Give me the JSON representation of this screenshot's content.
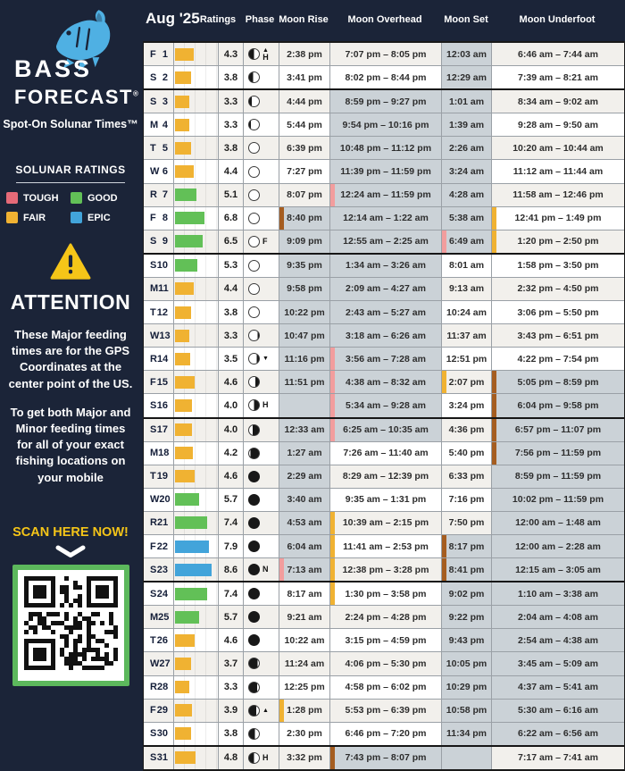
{
  "sidebar": {
    "brand_line1": "BASS",
    "brand_line2": "FORECAST",
    "reg_mark": "®",
    "tagline": "Spot-On Solunar Times™",
    "ratings_legend": {
      "title": "SOLUNAR RATINGS",
      "items": [
        {
          "label": "TOUGH",
          "color_key": "tough"
        },
        {
          "label": "GOOD",
          "color_key": "good"
        },
        {
          "label": "FAIR",
          "color_key": "fair"
        },
        {
          "label": "EPIC",
          "color_key": "epic"
        }
      ]
    },
    "attention": {
      "title": "ATTENTION",
      "para1": "These Major feeding times are for the GPS Coordinates at the center point of the US.",
      "para2": "To get both Major and Minor feeding times for all of your exact fishing locations on your mobile",
      "cta": "SCAN HERE NOW!"
    }
  },
  "table": {
    "month_label": "Aug '25",
    "columns": [
      "Ratings",
      "Phase",
      "Moon Rise",
      "Moon Overhead",
      "Moon Set",
      "Moon Underfoot"
    ],
    "colors": {
      "navy": "#1b2438",
      "tough": "#e66a78",
      "good": "#62c057",
      "fair": "#f0b232",
      "epic": "#42a4da",
      "night": "#cbd2d7",
      "marker_pink": "#f29d9d",
      "marker_brown": "#a55d20",
      "marker_yellow": "#f0b232",
      "qr_border": "#5cb85c",
      "accent_yellow": "#f5c518"
    },
    "week_break_after": [
      2,
      9,
      16,
      23,
      30
    ],
    "rows": [
      {
        "d": "F",
        "n": 1,
        "r": 4.3,
        "ph": [
          "left",
          50,
          "H",
          "up"
        ],
        "cells": [
          [
            "2:38 pm",
            0,
            ""
          ],
          [
            "7:07 pm – 8:05 pm",
            0,
            ""
          ],
          [
            "12:03 am",
            1,
            ""
          ],
          [
            "6:46 am – 7:44 am",
            0,
            ""
          ]
        ]
      },
      {
        "d": "S",
        "n": 2,
        "r": 3.8,
        "ph": [
          "left",
          40,
          "",
          ""
        ],
        "cells": [
          [
            "3:41 pm",
            0,
            ""
          ],
          [
            "8:02 pm – 8:44 pm",
            0,
            ""
          ],
          [
            "12:29 am",
            1,
            ""
          ],
          [
            "7:39 am – 8:21 am",
            0,
            ""
          ]
        ]
      },
      {
        "d": "S",
        "n": 3,
        "r": 3.3,
        "ph": [
          "left",
          26,
          "",
          ""
        ],
        "cells": [
          [
            "4:44 pm",
            0,
            ""
          ],
          [
            "8:59 pm – 9:27 pm",
            1,
            ""
          ],
          [
            "1:01 am",
            1,
            ""
          ],
          [
            "8:34 am – 9:02 am",
            0,
            ""
          ]
        ]
      },
      {
        "d": "M",
        "n": 4,
        "r": 3.3,
        "ph": [
          "left",
          16,
          "",
          ""
        ],
        "cells": [
          [
            "5:44 pm",
            0,
            ""
          ],
          [
            "9:54 pm – 10:16 pm",
            1,
            ""
          ],
          [
            "1:39 am",
            1,
            ""
          ],
          [
            "9:28 am – 9:50 am",
            0,
            ""
          ]
        ]
      },
      {
        "d": "T",
        "n": 5,
        "r": 3.8,
        "ph": [
          "left",
          0,
          "",
          ""
        ],
        "cells": [
          [
            "6:39 pm",
            0,
            ""
          ],
          [
            "10:48 pm – 11:12 pm",
            1,
            ""
          ],
          [
            "2:26 am",
            1,
            ""
          ],
          [
            "10:20 am – 10:44 am",
            0,
            ""
          ]
        ]
      },
      {
        "d": "W",
        "n": 6,
        "r": 4.4,
        "ph": [
          "left",
          0,
          "",
          ""
        ],
        "cells": [
          [
            "7:27 pm",
            0,
            ""
          ],
          [
            "11:39 pm – 11:59 pm",
            1,
            ""
          ],
          [
            "3:24 am",
            1,
            ""
          ],
          [
            "11:12 am – 11:44 am",
            0,
            ""
          ]
        ]
      },
      {
        "d": "R",
        "n": 7,
        "r": 5.1,
        "ph": [
          "left",
          0,
          "",
          ""
        ],
        "cells": [
          [
            "8:07 pm",
            0,
            ""
          ],
          [
            "12:24 am – 11:59 pm",
            1,
            "p"
          ],
          [
            "4:28 am",
            1,
            ""
          ],
          [
            "11:58 am – 12:46 pm",
            0,
            ""
          ]
        ]
      },
      {
        "d": "F",
        "n": 8,
        "r": 6.8,
        "ph": [
          "left",
          0,
          "",
          ""
        ],
        "cells": [
          [
            "8:40 pm",
            1,
            "b"
          ],
          [
            "12:14 am – 1:22 am",
            1,
            ""
          ],
          [
            "5:38 am",
            1,
            ""
          ],
          [
            "12:41 pm – 1:49 pm",
            0,
            "y"
          ]
        ]
      },
      {
        "d": "S",
        "n": 9,
        "r": 6.5,
        "ph": [
          "left",
          0,
          "F",
          ""
        ],
        "cells": [
          [
            "9:09 pm",
            1,
            ""
          ],
          [
            "12:55 am – 2:25 am",
            1,
            ""
          ],
          [
            "6:49 am",
            1,
            "p"
          ],
          [
            "1:20 pm – 2:50 pm",
            0,
            "y"
          ]
        ]
      },
      {
        "d": "S",
        "n": 10,
        "r": 5.3,
        "ph": [
          "left",
          0,
          "",
          ""
        ],
        "cells": [
          [
            "9:35 pm",
            1,
            ""
          ],
          [
            "1:34 am – 3:26 am",
            1,
            ""
          ],
          [
            "8:01 am",
            0,
            ""
          ],
          [
            "1:58 pm – 3:50 pm",
            0,
            ""
          ]
        ]
      },
      {
        "d": "M",
        "n": 11,
        "r": 4.4,
        "ph": [
          "left",
          0,
          "",
          ""
        ],
        "cells": [
          [
            "9:58 pm",
            1,
            ""
          ],
          [
            "2:09 am – 4:27 am",
            1,
            ""
          ],
          [
            "9:13 am",
            0,
            ""
          ],
          [
            "2:32 pm – 4:50 pm",
            0,
            ""
          ]
        ]
      },
      {
        "d": "T",
        "n": 12,
        "r": 3.8,
        "ph": [
          "left",
          0,
          "",
          ""
        ],
        "cells": [
          [
            "10:22 pm",
            1,
            ""
          ],
          [
            "2:43 am – 5:27 am",
            1,
            ""
          ],
          [
            "10:24 am",
            0,
            ""
          ],
          [
            "3:06 pm – 5:50 pm",
            0,
            ""
          ]
        ]
      },
      {
        "d": "W",
        "n": 13,
        "r": 3.3,
        "ph": [
          "right",
          12,
          "",
          ""
        ],
        "cells": [
          [
            "10:47 pm",
            1,
            ""
          ],
          [
            "3:18 am – 6:26 am",
            1,
            ""
          ],
          [
            "11:37 am",
            0,
            ""
          ],
          [
            "3:43 pm – 6:51 pm",
            0,
            ""
          ]
        ]
      },
      {
        "d": "R",
        "n": 14,
        "r": 3.5,
        "ph": [
          "right",
          22,
          "",
          "down"
        ],
        "cells": [
          [
            "11:16 pm",
            1,
            ""
          ],
          [
            "3:56 am – 7:28 am",
            1,
            "p"
          ],
          [
            "12:51 pm",
            0,
            ""
          ],
          [
            "4:22 pm – 7:54 pm",
            0,
            ""
          ]
        ]
      },
      {
        "d": "F",
        "n": 15,
        "r": 4.6,
        "ph": [
          "right",
          38,
          "",
          ""
        ],
        "cells": [
          [
            "11:51 pm",
            1,
            ""
          ],
          [
            "4:38 am – 8:32 am",
            1,
            "p"
          ],
          [
            "2:07 pm",
            0,
            "y"
          ],
          [
            "5:05 pm – 8:59 pm",
            1,
            "b"
          ]
        ]
      },
      {
        "d": "S",
        "n": 16,
        "r": 4.0,
        "ph": [
          "right",
          50,
          "H",
          ""
        ],
        "cells": [
          [
            "",
            1,
            ""
          ],
          [
            "5:34 am – 9:28 am",
            1,
            "p"
          ],
          [
            "3:24 pm",
            0,
            ""
          ],
          [
            "6:04 pm – 9:58 pm",
            1,
            "b"
          ]
        ]
      },
      {
        "d": "S",
        "n": 17,
        "r": 4.0,
        "ph": [
          "right",
          64,
          "",
          ""
        ],
        "cells": [
          [
            "12:33 am",
            1,
            ""
          ],
          [
            "6:25 am – 10:35 am",
            1,
            "p"
          ],
          [
            "4:36 pm",
            0,
            ""
          ],
          [
            "6:57 pm – 11:07 pm",
            1,
            "b"
          ]
        ]
      },
      {
        "d": "M",
        "n": 18,
        "r": 4.2,
        "ph": [
          "right",
          85,
          "",
          ""
        ],
        "cells": [
          [
            "1:27 am",
            1,
            ""
          ],
          [
            "7:26 am – 11:40 am",
            0,
            ""
          ],
          [
            "5:40 pm",
            0,
            ""
          ],
          [
            "7:56 pm – 11:59 pm",
            1,
            "b"
          ]
        ]
      },
      {
        "d": "T",
        "n": 19,
        "r": 4.6,
        "ph": [
          "right",
          100,
          "",
          ""
        ],
        "cells": [
          [
            "2:29 am",
            1,
            ""
          ],
          [
            "8:29 am – 12:39 pm",
            0,
            ""
          ],
          [
            "6:33 pm",
            0,
            ""
          ],
          [
            "8:59 pm – 11:59 pm",
            1,
            ""
          ]
        ]
      },
      {
        "d": "W",
        "n": 20,
        "r": 5.7,
        "ph": [
          "right",
          100,
          "",
          ""
        ],
        "cells": [
          [
            "3:40 am",
            1,
            ""
          ],
          [
            "9:35 am – 1:31 pm",
            0,
            ""
          ],
          [
            "7:16 pm",
            0,
            ""
          ],
          [
            "10:02 pm – 11:59 pm",
            1,
            ""
          ]
        ]
      },
      {
        "d": "R",
        "n": 21,
        "r": 7.4,
        "ph": [
          "right",
          100,
          "",
          ""
        ],
        "cells": [
          [
            "4:53 am",
            1,
            ""
          ],
          [
            "10:39 am – 2:15 pm",
            0,
            "y"
          ],
          [
            "7:50 pm",
            0,
            ""
          ],
          [
            "12:00 am – 1:48 am",
            1,
            ""
          ]
        ]
      },
      {
        "d": "F",
        "n": 22,
        "r": 7.9,
        "ph": [
          "right",
          100,
          "",
          ""
        ],
        "cells": [
          [
            "6:04 am",
            1,
            ""
          ],
          [
            "11:41 am – 2:53 pm",
            0,
            "y"
          ],
          [
            "8:17 pm",
            1,
            "b"
          ],
          [
            "12:00 am – 2:28 am",
            1,
            ""
          ]
        ]
      },
      {
        "d": "S",
        "n": 23,
        "r": 8.6,
        "ph": [
          "right",
          100,
          "N",
          ""
        ],
        "cells": [
          [
            "7:13 am",
            1,
            "p"
          ],
          [
            "12:38 pm – 3:28 pm",
            0,
            "y"
          ],
          [
            "8:41 pm",
            1,
            "b"
          ],
          [
            "12:15 am – 3:05 am",
            1,
            ""
          ]
        ]
      },
      {
        "d": "S",
        "n": 24,
        "r": 7.4,
        "ph": [
          "right",
          100,
          "",
          ""
        ],
        "cells": [
          [
            "8:17 am",
            0,
            ""
          ],
          [
            "1:30 pm – 3:58 pm",
            0,
            "y"
          ],
          [
            "9:02 pm",
            1,
            ""
          ],
          [
            "1:10 am – 3:38 am",
            1,
            ""
          ]
        ]
      },
      {
        "d": "M",
        "n": 25,
        "r": 5.7,
        "ph": [
          "right",
          100,
          "",
          ""
        ],
        "cells": [
          [
            "9:21 am",
            0,
            ""
          ],
          [
            "2:24 pm – 4:28 pm",
            0,
            ""
          ],
          [
            "9:22 pm",
            1,
            ""
          ],
          [
            "2:04 am – 4:08 am",
            1,
            ""
          ]
        ]
      },
      {
        "d": "T",
        "n": 26,
        "r": 4.6,
        "ph": [
          "right",
          100,
          "",
          ""
        ],
        "cells": [
          [
            "10:22 am",
            0,
            ""
          ],
          [
            "3:15 pm – 4:59 pm",
            0,
            ""
          ],
          [
            "9:43 pm",
            1,
            ""
          ],
          [
            "2:54 am – 4:38 am",
            1,
            ""
          ]
        ]
      },
      {
        "d": "W",
        "n": 27,
        "r": 3.7,
        "ph": [
          "left",
          88,
          "",
          ""
        ],
        "cells": [
          [
            "11:24 am",
            0,
            ""
          ],
          [
            "4:06 pm – 5:30 pm",
            0,
            ""
          ],
          [
            "10:05 pm",
            1,
            ""
          ],
          [
            "3:45 am – 5:09 am",
            1,
            ""
          ]
        ]
      },
      {
        "d": "R",
        "n": 28,
        "r": 3.3,
        "ph": [
          "left",
          80,
          "",
          ""
        ],
        "cells": [
          [
            "12:25 pm",
            0,
            ""
          ],
          [
            "4:58 pm – 6:02 pm",
            0,
            ""
          ],
          [
            "10:29 pm",
            1,
            ""
          ],
          [
            "4:37 am – 5:41 am",
            1,
            ""
          ]
        ]
      },
      {
        "d": "F",
        "n": 29,
        "r": 3.9,
        "ph": [
          "left",
          72,
          "",
          "up"
        ],
        "cells": [
          [
            "1:28 pm",
            0,
            "y"
          ],
          [
            "5:53 pm – 6:39 pm",
            0,
            ""
          ],
          [
            "10:58 pm",
            1,
            ""
          ],
          [
            "5:30 am – 6:16 am",
            1,
            ""
          ]
        ]
      },
      {
        "d": "S",
        "n": 30,
        "r": 3.8,
        "ph": [
          "left",
          58,
          "",
          ""
        ],
        "cells": [
          [
            "2:30 pm",
            0,
            ""
          ],
          [
            "6:46 pm – 7:20 pm",
            0,
            ""
          ],
          [
            "11:34 pm",
            1,
            ""
          ],
          [
            "6:22 am – 6:56 am",
            1,
            ""
          ]
        ]
      },
      {
        "d": "S",
        "n": 31,
        "r": 4.8,
        "ph": [
          "left",
          50,
          "H",
          ""
        ],
        "cells": [
          [
            "3:32 pm",
            0,
            ""
          ],
          [
            "7:43 pm – 8:07 pm",
            1,
            "b"
          ],
          [
            "",
            1,
            ""
          ],
          [
            "7:17 am – 7:41 am",
            0,
            ""
          ]
        ]
      }
    ]
  }
}
